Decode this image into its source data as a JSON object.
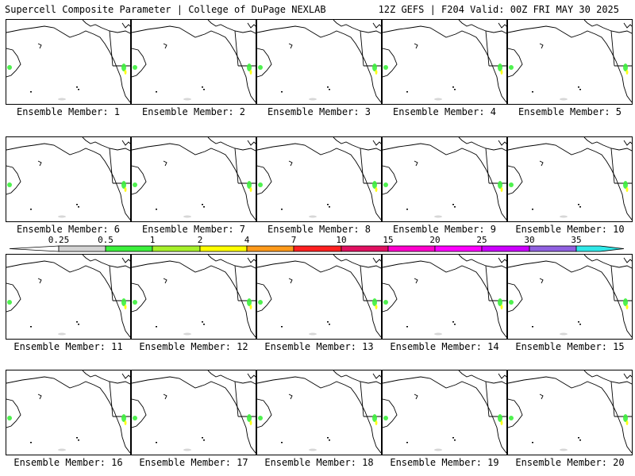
{
  "header": {
    "left": "Supercell Composite Parameter | College of DuPage NEXLAB",
    "right": "12Z GEFS | F204 Valid: 00Z FRI MAY 30 2025"
  },
  "colorbar": {
    "colors": [
      "#d3d3d3",
      "#3cf03c",
      "#a6f02a",
      "#ffff00",
      "#ff9a1a",
      "#ff2020",
      "#e01060",
      "#ff00cc",
      "#ff00ff",
      "#cc00ff",
      "#9060e0",
      "#30e8e8"
    ],
    "tick_labels": [
      "0.25",
      "0.5",
      "1",
      "2",
      "4",
      "7",
      "10",
      "15",
      "20",
      "25",
      "30",
      "35"
    ]
  },
  "members": [
    {
      "label": "Ensemble Member: 1"
    },
    {
      "label": "Ensemble Member: 2"
    },
    {
      "label": "Ensemble Member: 3"
    },
    {
      "label": "Ensemble Member: 4"
    },
    {
      "label": "Ensemble Member: 5"
    },
    {
      "label": "Ensemble Member: 6"
    },
    {
      "label": "Ensemble Member: 7"
    },
    {
      "label": "Ensemble Member: 8"
    },
    {
      "label": "Ensemble Member: 9"
    },
    {
      "label": "Ensemble Member: 10"
    },
    {
      "label": "Ensemble Member: 11"
    },
    {
      "label": "Ensemble Member: 12"
    },
    {
      "label": "Ensemble Member: 13"
    },
    {
      "label": "Ensemble Member: 14"
    },
    {
      "label": "Ensemble Member: 15"
    },
    {
      "label": "Ensemble Member: 16"
    },
    {
      "label": "Ensemble Member: 17"
    },
    {
      "label": "Ensemble Member: 18"
    },
    {
      "label": "Ensemble Member: 19"
    },
    {
      "label": "Ensemble Member: 20"
    }
  ]
}
